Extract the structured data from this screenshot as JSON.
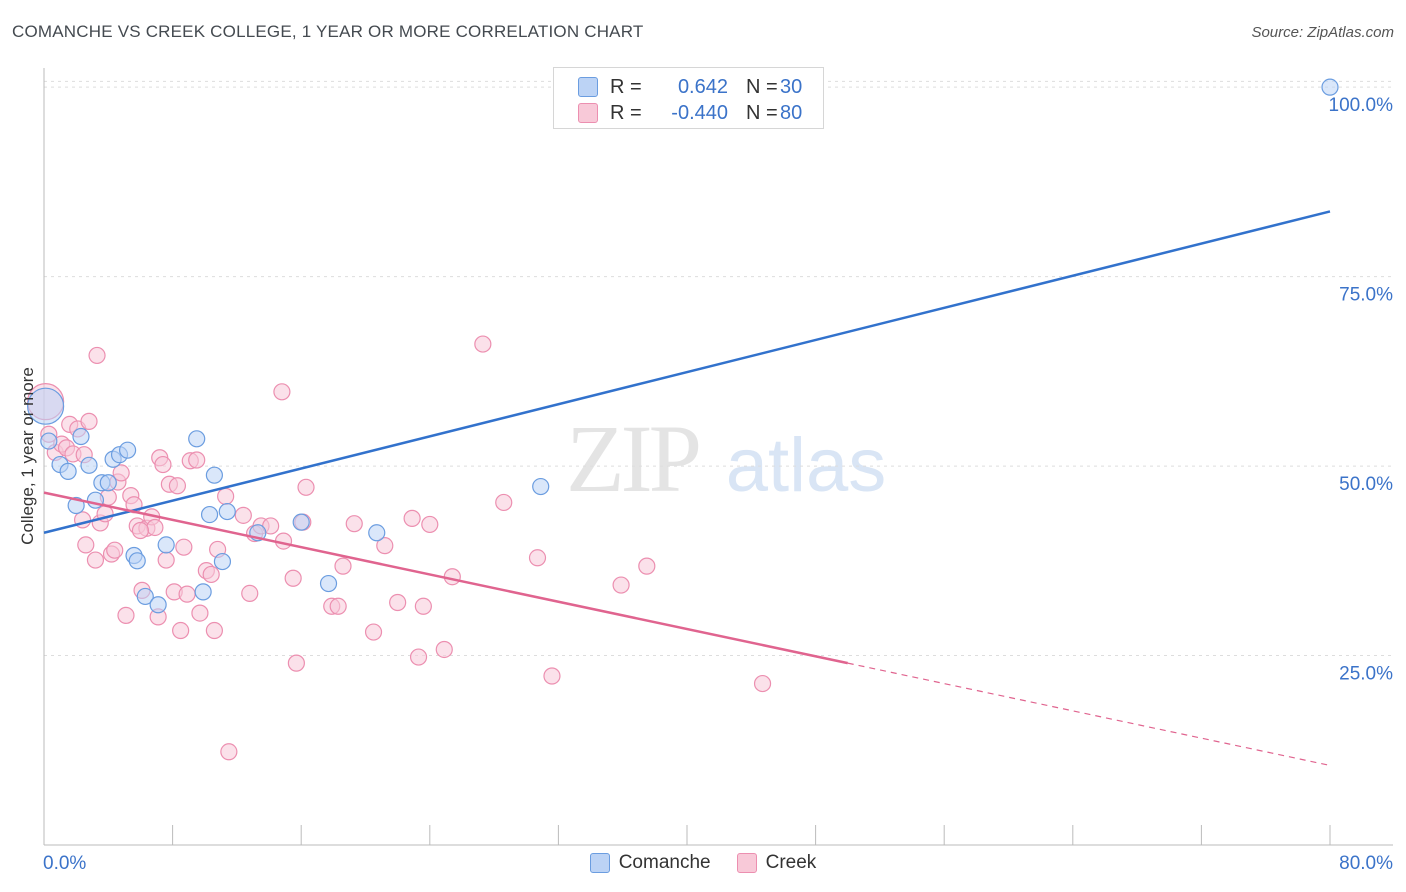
{
  "title": "COMANCHE VS CREEK COLLEGE, 1 YEAR OR MORE CORRELATION CHART",
  "source": "Source: ZipAtlas.com",
  "watermark": {
    "zip": "ZIP",
    "atlas": "atlas"
  },
  "colors": {
    "blue_stroke": "#6b9de0",
    "blue_fill": "#bcd3f5",
    "blue_line": "#3272cc",
    "pink_stroke": "#ec8fb0",
    "pink_fill": "#f8c9d8",
    "pink_line": "#e0648f",
    "tick_text": "#3b73c9",
    "grid": "#dddddd"
  },
  "legend": {
    "items": [
      {
        "r_label": "R =",
        "r_value": "0.642",
        "n_label": "N =",
        "n_value": "30"
      },
      {
        "r_label": "R =",
        "r_value": "-0.440",
        "n_label": "N =",
        "n_value": "80"
      }
    ]
  },
  "chart_data": {
    "type": "scatter",
    "title": "COMANCHE VS CREEK COLLEGE, 1 YEAR OR MORE CORRELATION CHART",
    "xlabel": "",
    "ylabel": "College, 1 year or more",
    "xlim": [
      0,
      80
    ],
    "ylim": [
      0,
      102
    ],
    "x_tick_labels": [
      "0.0%",
      "80.0%"
    ],
    "y_ticks": [
      {
        "value": 25,
        "label": "25.0%"
      },
      {
        "value": 50,
        "label": "50.0%"
      },
      {
        "value": 75,
        "label": "75.0%"
      },
      {
        "value": 100,
        "label": "100.0%"
      }
    ],
    "grid": true,
    "legend_position": "top-center",
    "series": [
      {
        "name": "Comanche",
        "r": 0.642,
        "n": 30,
        "trend": {
          "x0": 0,
          "y0": 41.2,
          "x1": 80,
          "y1": 83.6,
          "solid_until": 80
        },
        "points": [
          [
            0.1,
            57.9,
            2
          ],
          [
            0.3,
            53.3,
            1
          ],
          [
            1.0,
            50.2,
            1
          ],
          [
            1.5,
            49.3,
            1
          ],
          [
            2.3,
            53.9,
            1
          ],
          [
            2.8,
            50.1,
            1
          ],
          [
            3.2,
            45.5,
            1
          ],
          [
            3.6,
            47.8,
            1
          ],
          [
            4.3,
            50.9,
            1
          ],
          [
            4.7,
            51.5,
            1
          ],
          [
            5.2,
            52.1,
            1
          ],
          [
            5.6,
            38.2,
            1
          ],
          [
            5.8,
            37.5,
            1
          ],
          [
            6.3,
            32.8,
            1
          ],
          [
            7.1,
            31.7,
            1
          ],
          [
            7.6,
            39.6,
            1
          ],
          [
            9.5,
            53.6,
            1
          ],
          [
            9.9,
            33.4,
            1
          ],
          [
            10.3,
            43.6,
            1
          ],
          [
            10.6,
            48.8,
            1
          ],
          [
            11.1,
            37.4,
            1
          ],
          [
            11.4,
            44.0,
            1
          ],
          [
            13.3,
            41.2,
            1
          ],
          [
            16.0,
            42.6,
            1
          ],
          [
            17.7,
            34.5,
            1
          ],
          [
            20.7,
            41.2,
            1
          ],
          [
            30.9,
            47.3,
            1
          ],
          [
            80.0,
            100.0,
            1
          ],
          [
            2.0,
            44.8,
            1
          ],
          [
            4.0,
            47.8,
            1
          ]
        ]
      },
      {
        "name": "Creek",
        "r": -0.44,
        "n": 80,
        "trend": {
          "x0": 0,
          "y0": 46.5,
          "x1": 80,
          "y1": 10.5,
          "solid_until": 50
        },
        "points": [
          [
            0.1,
            58.5,
            2
          ],
          [
            0.3,
            54.2,
            1
          ],
          [
            0.7,
            51.8,
            1
          ],
          [
            1.1,
            52.9,
            1
          ],
          [
            1.4,
            52.4,
            1
          ],
          [
            1.6,
            55.5,
            1
          ],
          [
            1.8,
            51.6,
            1
          ],
          [
            2.1,
            54.9,
            1
          ],
          [
            2.4,
            42.9,
            1
          ],
          [
            2.6,
            39.6,
            1
          ],
          [
            2.8,
            55.9,
            1
          ],
          [
            3.2,
            37.6,
            1
          ],
          [
            3.3,
            64.6,
            1
          ],
          [
            3.5,
            42.5,
            1
          ],
          [
            3.8,
            43.7,
            1
          ],
          [
            4.0,
            45.9,
            1
          ],
          [
            4.2,
            38.4,
            1
          ],
          [
            4.4,
            38.9,
            1
          ],
          [
            4.6,
            47.9,
            1
          ],
          [
            4.8,
            49.1,
            1
          ],
          [
            5.1,
            30.3,
            1
          ],
          [
            5.4,
            46.1,
            1
          ],
          [
            5.6,
            44.9,
            1
          ],
          [
            5.8,
            42.1,
            1
          ],
          [
            6.1,
            33.6,
            1
          ],
          [
            6.4,
            41.8,
            1
          ],
          [
            6.7,
            43.3,
            1
          ],
          [
            6.9,
            41.9,
            1
          ],
          [
            7.1,
            30.1,
            1
          ],
          [
            7.2,
            51.1,
            1
          ],
          [
            7.4,
            50.2,
            1
          ],
          [
            7.6,
            37.6,
            1
          ],
          [
            7.8,
            47.6,
            1
          ],
          [
            8.1,
            33.4,
            1
          ],
          [
            8.3,
            47.4,
            1
          ],
          [
            8.5,
            28.3,
            1
          ],
          [
            8.7,
            39.3,
            1
          ],
          [
            8.9,
            33.1,
            1
          ],
          [
            9.1,
            50.7,
            1
          ],
          [
            9.5,
            50.8,
            1
          ],
          [
            9.7,
            30.6,
            1
          ],
          [
            10.1,
            36.2,
            1
          ],
          [
            10.4,
            35.7,
            1
          ],
          [
            10.6,
            28.3,
            1
          ],
          [
            10.8,
            39.0,
            1
          ],
          [
            11.3,
            46.0,
            1
          ],
          [
            11.5,
            12.3,
            1
          ],
          [
            12.4,
            43.5,
            1
          ],
          [
            12.8,
            33.2,
            1
          ],
          [
            13.1,
            41.1,
            1
          ],
          [
            13.5,
            42.1,
            1
          ],
          [
            14.1,
            42.1,
            1
          ],
          [
            14.8,
            59.8,
            1
          ],
          [
            14.9,
            40.1,
            1
          ],
          [
            15.5,
            35.2,
            1
          ],
          [
            15.7,
            24.0,
            1
          ],
          [
            16.1,
            42.6,
            1
          ],
          [
            16.3,
            47.2,
            1
          ],
          [
            17.9,
            31.5,
            1
          ],
          [
            18.3,
            31.5,
            1
          ],
          [
            18.6,
            36.8,
            1
          ],
          [
            19.3,
            42.4,
            1
          ],
          [
            20.5,
            28.1,
            1
          ],
          [
            21.2,
            39.5,
            1
          ],
          [
            22.0,
            32.0,
            1
          ],
          [
            22.9,
            43.1,
            1
          ],
          [
            23.3,
            24.8,
            1
          ],
          [
            23.6,
            31.5,
            1
          ],
          [
            24.0,
            42.3,
            1
          ],
          [
            24.9,
            25.8,
            1
          ],
          [
            25.4,
            35.4,
            1
          ],
          [
            27.3,
            66.1,
            1
          ],
          [
            28.6,
            45.2,
            1
          ],
          [
            30.7,
            37.9,
            1
          ],
          [
            31.6,
            22.3,
            1
          ],
          [
            35.9,
            34.3,
            1
          ],
          [
            37.5,
            36.8,
            1
          ],
          [
            44.7,
            21.3,
            1
          ],
          [
            6.0,
            41.5,
            1
          ],
          [
            2.5,
            51.5,
            1
          ]
        ]
      }
    ]
  },
  "bottom_legend": [
    "Comanche",
    "Creek"
  ]
}
